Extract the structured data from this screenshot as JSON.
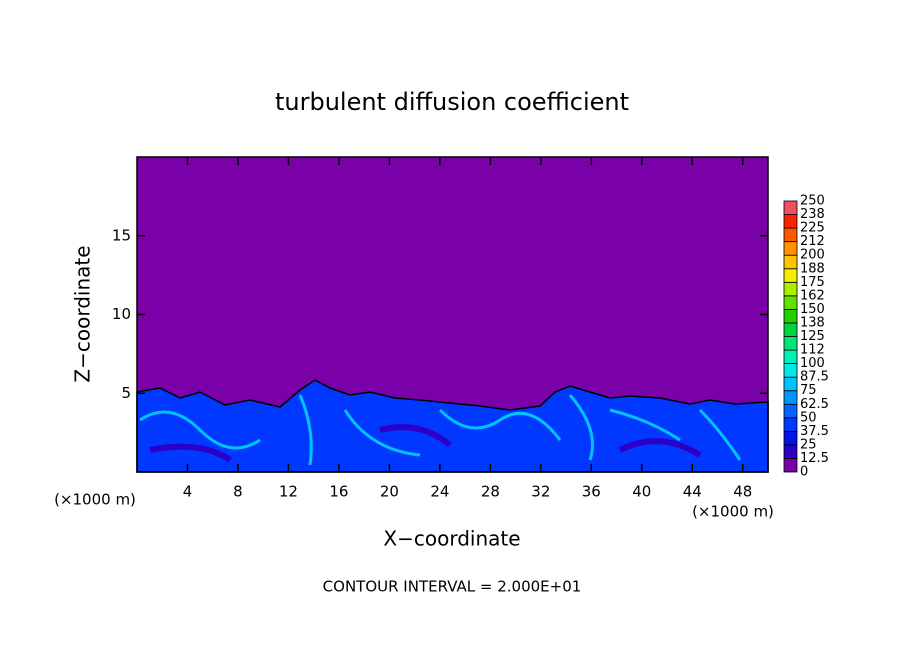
{
  "chart_data": {
    "type": "contour",
    "title": "turbulent diffusion coefficient",
    "x_label": "X−coordinate",
    "y_label": "Z−coordinate",
    "x_unit_left": "(×1000 m)",
    "x_unit_right": "(×1000 m)",
    "footer": "CONTOUR INTERVAL = 2.000E+01",
    "xlim": [
      0,
      50
    ],
    "xticks": [
      4,
      8,
      12,
      16,
      20,
      24,
      28,
      32,
      36,
      40,
      44,
      48
    ],
    "ylim": [
      0,
      20
    ],
    "yticks": [
      5,
      10,
      15
    ],
    "colorbar": {
      "ticks": [
        0,
        12.5,
        25,
        37.5,
        50,
        62.5,
        75,
        87.5,
        100,
        {
          "value": 112.5,
          "label": "112"
        },
        125,
        {
          "value": 137.5,
          "label": "138"
        },
        150,
        {
          "value": 162.5,
          "label": "162"
        },
        175,
        {
          "value": 187.5,
          "label": "188"
        },
        200,
        {
          "value": 212.5,
          "label": "212"
        },
        225,
        {
          "value": 237.5,
          "label": "238"
        },
        250
      ],
      "colors": [
        "#7a00a8",
        "#2c00c8",
        "#0014e6",
        "#0038ff",
        "#0064ff",
        "#0094ff",
        "#00c4ff",
        "#00e8e8",
        "#00f0b8",
        "#00e478",
        "#00d444",
        "#20d000",
        "#64e000",
        "#a8f000",
        "#f0f000",
        "#ffc400",
        "#ff9400",
        "#ff5800",
        "#ff2000",
        "#f05060"
      ]
    }
  }
}
